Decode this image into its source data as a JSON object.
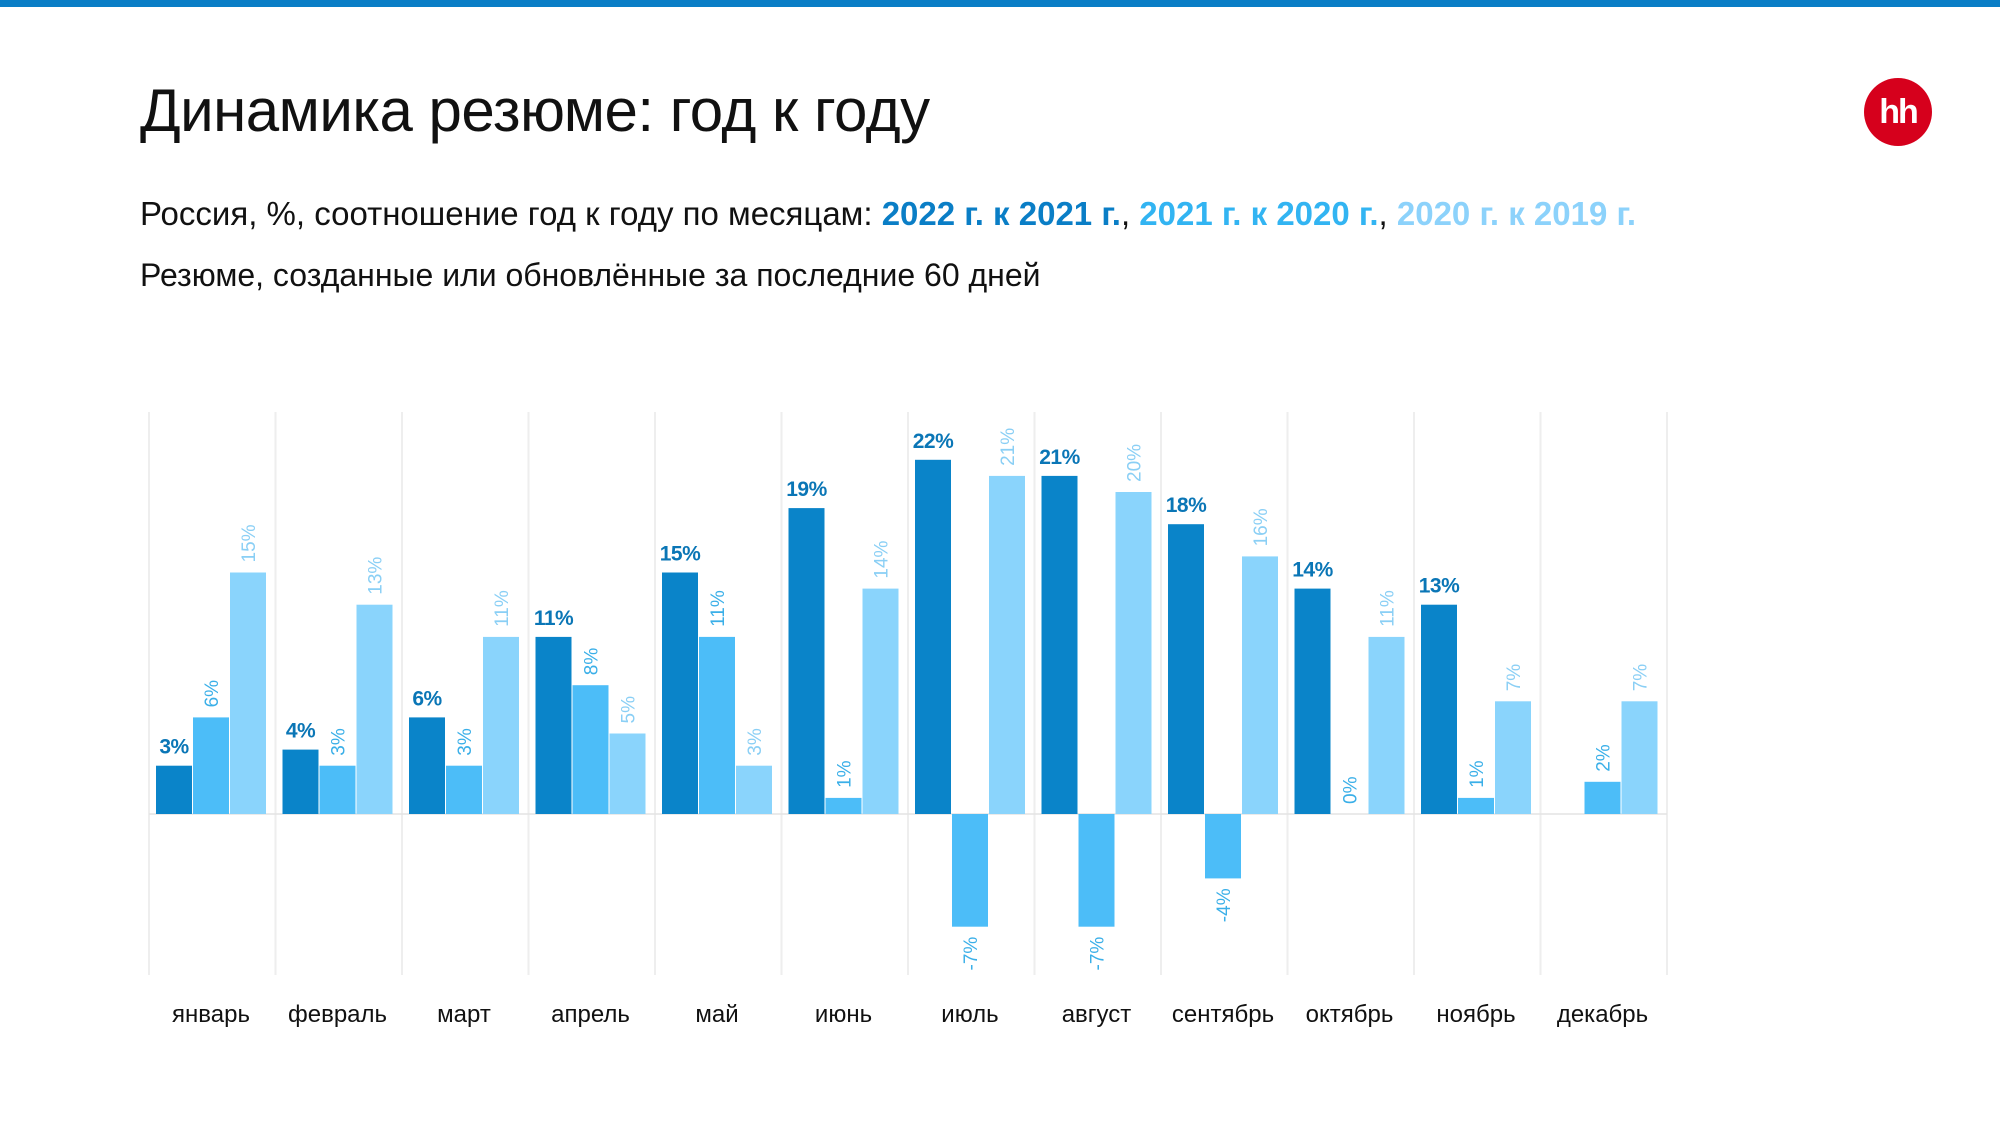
{
  "header": {
    "title": "Динамика резюме: год к году",
    "subtitle_prefix": "Россия, %, соотношение год к году по месяцам: ",
    "series_label_0": "2022 г. к 2021 г.",
    "sep_0": ", ",
    "series_label_1": "2021 г. к 2020 г.",
    "sep_1": ", ",
    "series_label_2": "2020 г. к 2019 г.",
    "note": "Резюме, созданные или обновлённые за последние 60 дней",
    "logo_text": "hh"
  },
  "colors": {
    "series": [
      "#0a84c9",
      "#4cbdf8",
      "#8ad4fc"
    ],
    "label": [
      "#0a76b6",
      "#3aafe8",
      "#8acff5"
    ],
    "gridline": "#eeeeee",
    "brand": "#d6001c",
    "top_bar": "#0a7ec6"
  },
  "chart_data": {
    "type": "bar",
    "title": "Динамика резюме: год к году",
    "xlabel": "",
    "ylabel": "",
    "unit": "%",
    "ylim": [
      -16,
      24
    ],
    "grid": "vertical separators between months",
    "legend": "in subtitle text",
    "categories": [
      "январь",
      "февраль",
      "март",
      "апрель",
      "май",
      "июнь",
      "июль",
      "август",
      "сентябрь",
      "октябрь",
      "ноябрь",
      "декабрь"
    ],
    "series": [
      {
        "name": "2022 г. к 2021 г.",
        "values": [
          3,
          4,
          6,
          11,
          15,
          19,
          22,
          21,
          18,
          14,
          13,
          null
        ]
      },
      {
        "name": "2021 г. к 2020 г.",
        "values": [
          6,
          3,
          3,
          8,
          11,
          1,
          -7,
          -7,
          -4,
          0,
          1,
          2
        ]
      },
      {
        "name": "2020 г. к 2019 г.",
        "values": [
          15,
          13,
          11,
          5,
          3,
          14,
          21,
          20,
          16,
          11,
          7,
          7
        ]
      }
    ]
  }
}
